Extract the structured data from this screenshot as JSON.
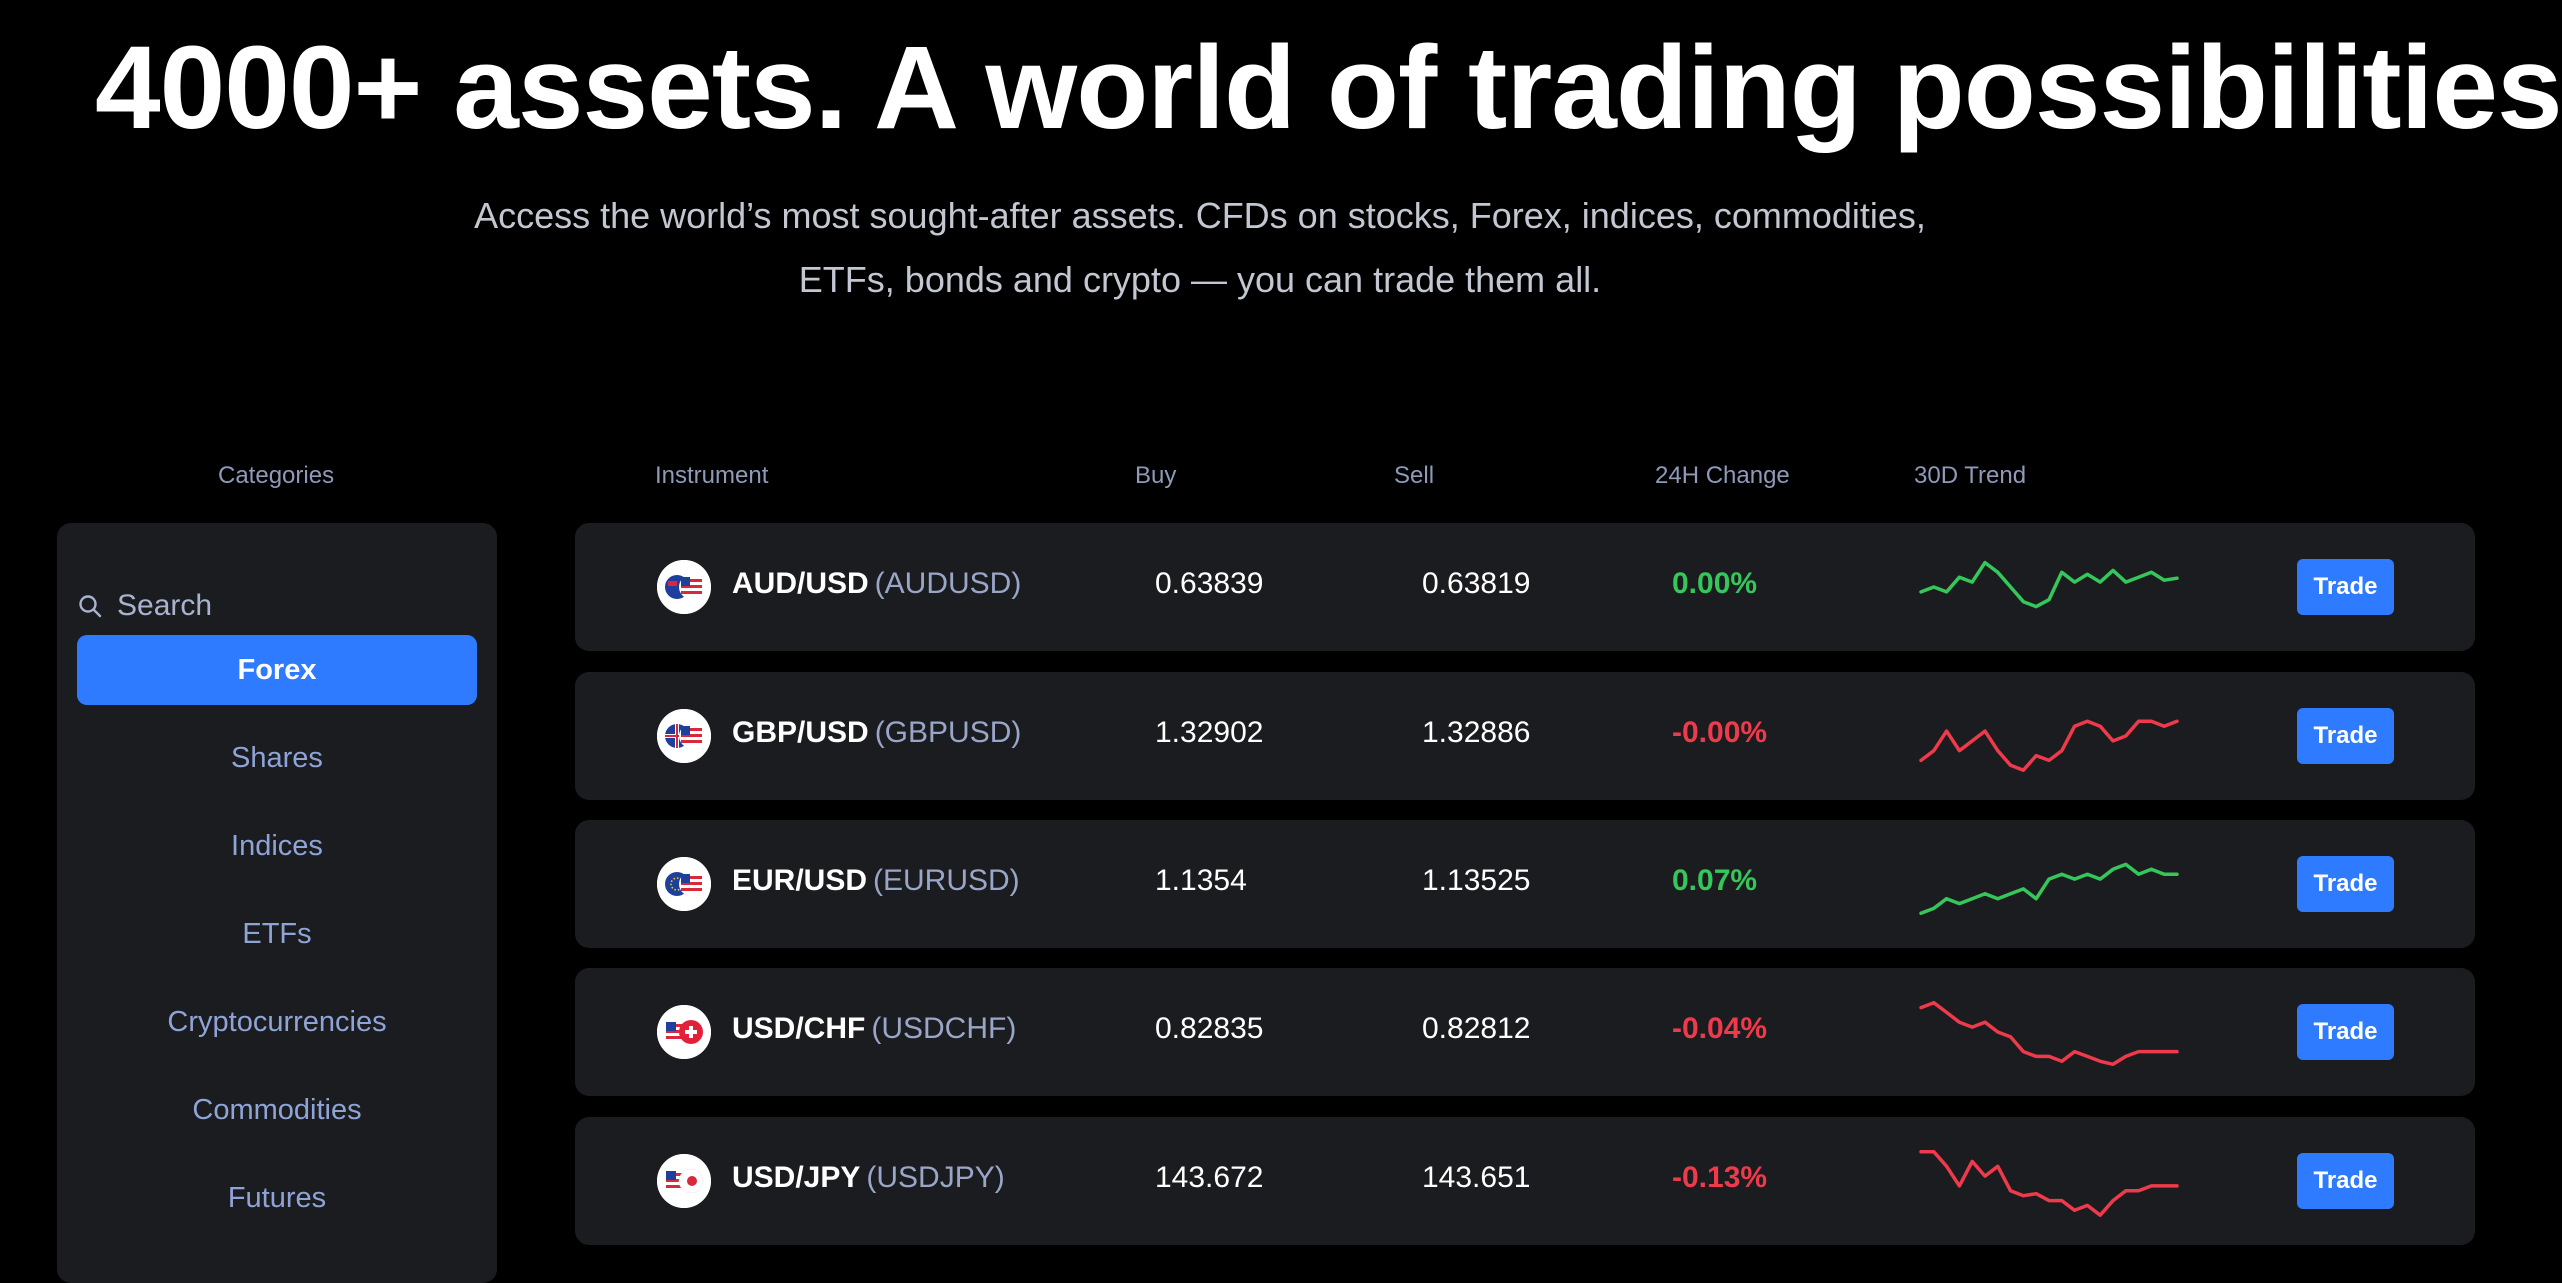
{
  "headline": "4000+ assets. A world of trading possibilities",
  "subtitle_line1": "Access the world’s most sought-after assets. CFDs on stocks, Forex, indices, commodities,",
  "subtitle_line2": "ETFs, bonds and crypto — you can trade them all.",
  "columns": {
    "categories": "Categories",
    "instrument": "Instrument",
    "buy": "Buy",
    "sell": "Sell",
    "change": "24H Change",
    "trend": "30D Trend"
  },
  "sidebar": {
    "search_placeholder": "Search",
    "search_icon": "search-icon",
    "items": [
      {
        "label": "Forex",
        "active": true
      },
      {
        "label": "Shares",
        "active": false
      },
      {
        "label": "Indices",
        "active": false
      },
      {
        "label": "ETFs",
        "active": false
      },
      {
        "label": "Cryptocurrencies",
        "active": false
      },
      {
        "label": "Commodities",
        "active": false
      },
      {
        "label": "Futures",
        "active": false
      }
    ]
  },
  "instruments": [
    {
      "name": "AUD/USD",
      "code": "(AUDUSD)",
      "buy": "0.63839",
      "sell": "0.63819",
      "change": "0.00%",
      "direction": "up",
      "flag_icon": "aud-usd-flag-icon",
      "trade_label": "Trade",
      "trend": [
        5,
        4.5,
        5,
        3.5,
        4,
        2,
        3,
        4.5,
        6,
        6.5,
        5.8,
        3,
        4,
        3.2,
        4,
        2.8,
        4,
        3.5,
        3,
        3.8,
        3.6
      ]
    },
    {
      "name": "GBP/USD",
      "code": "(GBPUSD)",
      "buy": "1.32902",
      "sell": "1.32886",
      "change": "-0.00%",
      "direction": "down",
      "flag_icon": "gbp-usd-flag-icon",
      "trade_label": "Trade",
      "trend": [
        7,
        6,
        4,
        6,
        5,
        4,
        6,
        7.5,
        8,
        6.5,
        7,
        6,
        3.5,
        3,
        3.5,
        5,
        4.5,
        3,
        3,
        3.5,
        3
      ]
    },
    {
      "name": "EUR/USD",
      "code": "(EURUSD)",
      "buy": "1.1354",
      "sell": "1.13525",
      "change": "0.07%",
      "direction": "up",
      "flag_icon": "eur-usd-flag-icon",
      "trade_label": "Trade",
      "trend": [
        7.5,
        7,
        6,
        6.5,
        6,
        5.5,
        6,
        5.5,
        5,
        6,
        4,
        3.5,
        4,
        3.5,
        4,
        3,
        2.5,
        3.5,
        3,
        3.5,
        3.5
      ]
    },
    {
      "name": "USD/CHF",
      "code": "(USDCHF)",
      "buy": "0.82835",
      "sell": "0.82812",
      "change": "-0.04%",
      "direction": "down",
      "flag_icon": "usd-chf-flag-icon",
      "trade_label": "Trade",
      "trend": [
        2,
        1.5,
        2.5,
        3.5,
        4,
        3.5,
        4.5,
        5,
        6.5,
        7,
        7,
        7.5,
        6.5,
        7,
        7.5,
        7.8,
        7,
        6.5,
        6.5,
        6.5,
        6.5
      ]
    },
    {
      "name": "USD/JPY",
      "code": "(USDJPY)",
      "buy": "143.672",
      "sell": "143.651",
      "change": "-0.13%",
      "direction": "down",
      "flag_icon": "usd-jpy-flag-icon",
      "trade_label": "Trade",
      "trend": [
        1.5,
        1.5,
        3,
        5,
        2.5,
        4,
        3,
        5.5,
        6,
        5.8,
        6.5,
        6.5,
        7.5,
        7,
        8,
        6.5,
        5.5,
        5.5,
        5,
        5,
        5
      ]
    }
  ],
  "colors": {
    "accent": "#2f7bff",
    "up": "#35c75a",
    "down": "#ee3a4a",
    "panel": "#1b1c20"
  }
}
